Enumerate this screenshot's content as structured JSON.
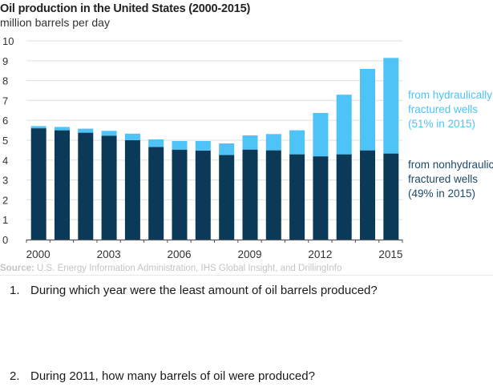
{
  "chart_data": {
    "type": "bar",
    "stacked": true,
    "title": "Oil production in the United States (2000-2015)",
    "subtitle": "million barrels per day",
    "xlabel": "",
    "ylabel": "million barrels per day",
    "ylim": [
      0,
      10
    ],
    "yticks": [
      "0",
      "1",
      "2",
      "3",
      "4",
      "5",
      "6",
      "7",
      "8",
      "9",
      "10"
    ],
    "grid": true,
    "categories": [
      "2000",
      "2001",
      "2002",
      "2003",
      "2004",
      "2005",
      "2006",
      "2007",
      "2008",
      "2009",
      "2010",
      "2011",
      "2012",
      "2013",
      "2014",
      "2015"
    ],
    "xtick_labels": [
      "2000",
      "2003",
      "2006",
      "2009",
      "2012",
      "2015"
    ],
    "xtick_label_categories": [
      "2000",
      "2003",
      "2006",
      "2009",
      "2012",
      "2015"
    ],
    "series": [
      {
        "name": "from nonhydraulically fractured wells",
        "color": "#0b3a58",
        "values": [
          5.6,
          5.5,
          5.38,
          5.23,
          5.0,
          4.66,
          4.53,
          4.48,
          4.26,
          4.53,
          4.49,
          4.29,
          4.19,
          4.29,
          4.49,
          4.33
        ]
      },
      {
        "name": "from hydraulically fractured wells",
        "color": "#4dc3f7",
        "values": [
          0.11,
          0.17,
          0.2,
          0.24,
          0.33,
          0.38,
          0.43,
          0.48,
          0.58,
          0.71,
          0.82,
          1.21,
          2.18,
          3.0,
          4.1,
          4.81
        ]
      }
    ],
    "legend": {
      "placement": "right",
      "hydraulic": [
        "from hydraulically",
        "fractured wells",
        "(51% in 2015)"
      ],
      "nonhydraulic": [
        "from nonhydraulically",
        "fractured wells",
        "(49% in 2015)"
      ]
    },
    "source_label": "Source:",
    "source_text": " U.S. Energy Information Administration, IHS Global Insight, and DrillingInfo",
    "colors": {
      "hydraulic": "#4dc3f7",
      "nonhydraulic": "#0b3a58",
      "gridline": "#e4e4e4",
      "axis": "#555555"
    }
  },
  "questions": [
    {
      "number": "1.",
      "text": "During which year were the least amount of oil barrels produced?"
    },
    {
      "number": "2.",
      "text": "During 2011, how many barrels of oil were produced?"
    }
  ]
}
